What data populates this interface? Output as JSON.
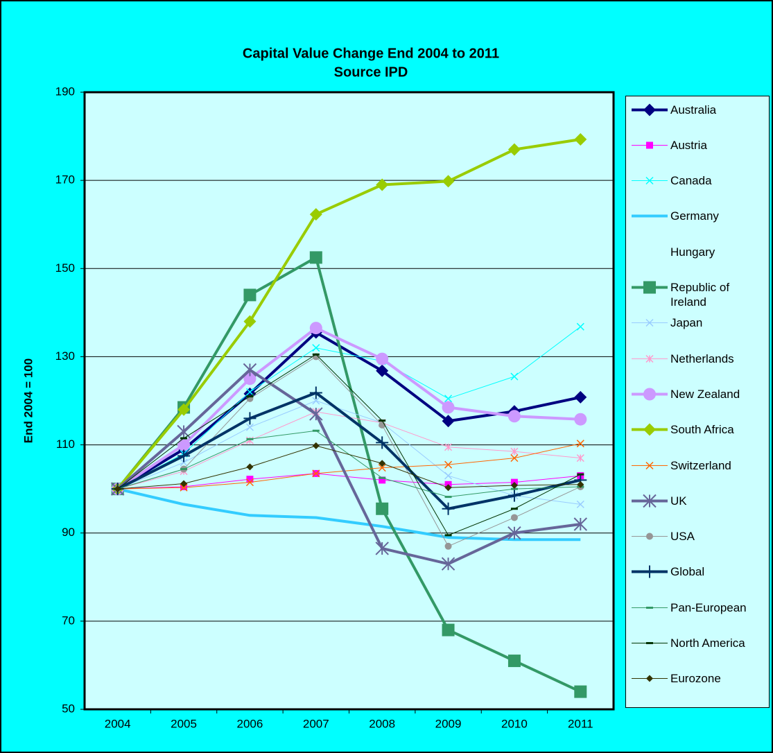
{
  "chart_data": {
    "type": "line",
    "title": "Capital Value Change End 2004 to 2011",
    "subtitle": "Source IPD",
    "y_label": "End 2004 = 100",
    "categories": [
      "2004",
      "2005",
      "2006",
      "2007",
      "2008",
      "2009",
      "2010",
      "2011"
    ],
    "ylim": [
      50,
      190
    ],
    "yticks": [
      50,
      70,
      90,
      110,
      130,
      150,
      170,
      190
    ],
    "grid": true,
    "legend": "right",
    "series": [
      {
        "name": "Australia",
        "color": "#000080",
        "marker": "diamond",
        "line_width": 4,
        "values": [
          100,
          109,
          121.6,
          135.5,
          126.8,
          115.4,
          117.6,
          120.8
        ]
      },
      {
        "name": "Austria",
        "color": "#ff00ff",
        "marker": "square",
        "line_width": 1,
        "values": [
          100,
          100.5,
          102.2,
          103.5,
          102,
          101,
          101.5,
          103
        ]
      },
      {
        "name": "Canada",
        "color": "#00ffff",
        "marker": "x",
        "line_width": 1,
        "values": [
          100,
          108,
          122,
          132,
          129,
          120.5,
          125.5,
          136.8
        ]
      },
      {
        "name": "Germany",
        "color": "#33ccff",
        "marker": "none",
        "line_width": 4,
        "values": [
          100,
          96.5,
          94,
          93.5,
          91.5,
          89,
          88.5,
          88.5
        ]
      },
      {
        "name": "Hungary",
        "color": null,
        "marker": "none",
        "line_width": 1,
        "values": [
          null,
          null,
          null,
          null,
          null,
          null,
          null,
          null
        ]
      },
      {
        "name": "Republic of Ireland",
        "color": "#339966",
        "marker": "square",
        "line_width": 4,
        "values": [
          100,
          118.5,
          144,
          152.5,
          95.5,
          68,
          61,
          54
        ]
      },
      {
        "name": "Japan",
        "color": "#99ccff",
        "marker": "x",
        "line_width": 1,
        "values": [
          100,
          106,
          114,
          120,
          115,
          103,
          98.5,
          96.5
        ]
      },
      {
        "name": "Netherlands",
        "color": "#ff99cc",
        "marker": "asterisk",
        "line_width": 1,
        "values": [
          100,
          104,
          111,
          117.5,
          115,
          109.5,
          108.5,
          107
        ]
      },
      {
        "name": "New Zealand",
        "color": "#cc99ff",
        "marker": "circle",
        "line_width": 4,
        "values": [
          100,
          110,
          125,
          136.5,
          129.5,
          118.5,
          116.5,
          115.8
        ]
      },
      {
        "name": "South Africa",
        "color": "#99cc00",
        "marker": "diamond",
        "line_width": 4,
        "values": [
          100,
          118,
          138,
          162.3,
          169,
          169.8,
          177,
          179.3
        ]
      },
      {
        "name": "Switzerland",
        "color": "#ff6600",
        "marker": "x",
        "line_width": 1,
        "values": [
          100,
          100.3,
          101.5,
          103.5,
          104.8,
          105.5,
          107,
          110.3
        ]
      },
      {
        "name": "UK",
        "color": "#666699",
        "marker": "asterisk",
        "line_width": 4,
        "values": [
          100,
          113,
          127,
          117,
          86.5,
          83,
          90,
          92
        ]
      },
      {
        "name": "USA",
        "color": "#969696",
        "marker": "circle",
        "line_width": 1,
        "values": [
          100,
          104.5,
          120.5,
          130,
          114.5,
          87,
          93.5,
          100.5
        ]
      },
      {
        "name": "Global",
        "color": "#003366",
        "marker": "plus",
        "line_width": 4,
        "values": [
          100,
          107.5,
          116,
          121.8,
          110.5,
          95.5,
          98.5,
          102
        ]
      },
      {
        "name": "Pan-European",
        "color": "#339966",
        "marker": "dash",
        "line_width": 1,
        "values": [
          100,
          104.5,
          111.3,
          113.2,
          102.5,
          98.2,
          100,
          100.5
        ]
      },
      {
        "name": "North America",
        "color": "#003300",
        "marker": "dash",
        "line_width": 1,
        "values": [
          100,
          111.5,
          121,
          130.5,
          115.5,
          89.5,
          95.5,
          103.3
        ]
      },
      {
        "name": "Eurozone",
        "color": "#333300",
        "marker": "diamond",
        "line_width": 1,
        "values": [
          100,
          101.2,
          105,
          109.8,
          105.8,
          100.3,
          100.8,
          101
        ]
      }
    ]
  }
}
